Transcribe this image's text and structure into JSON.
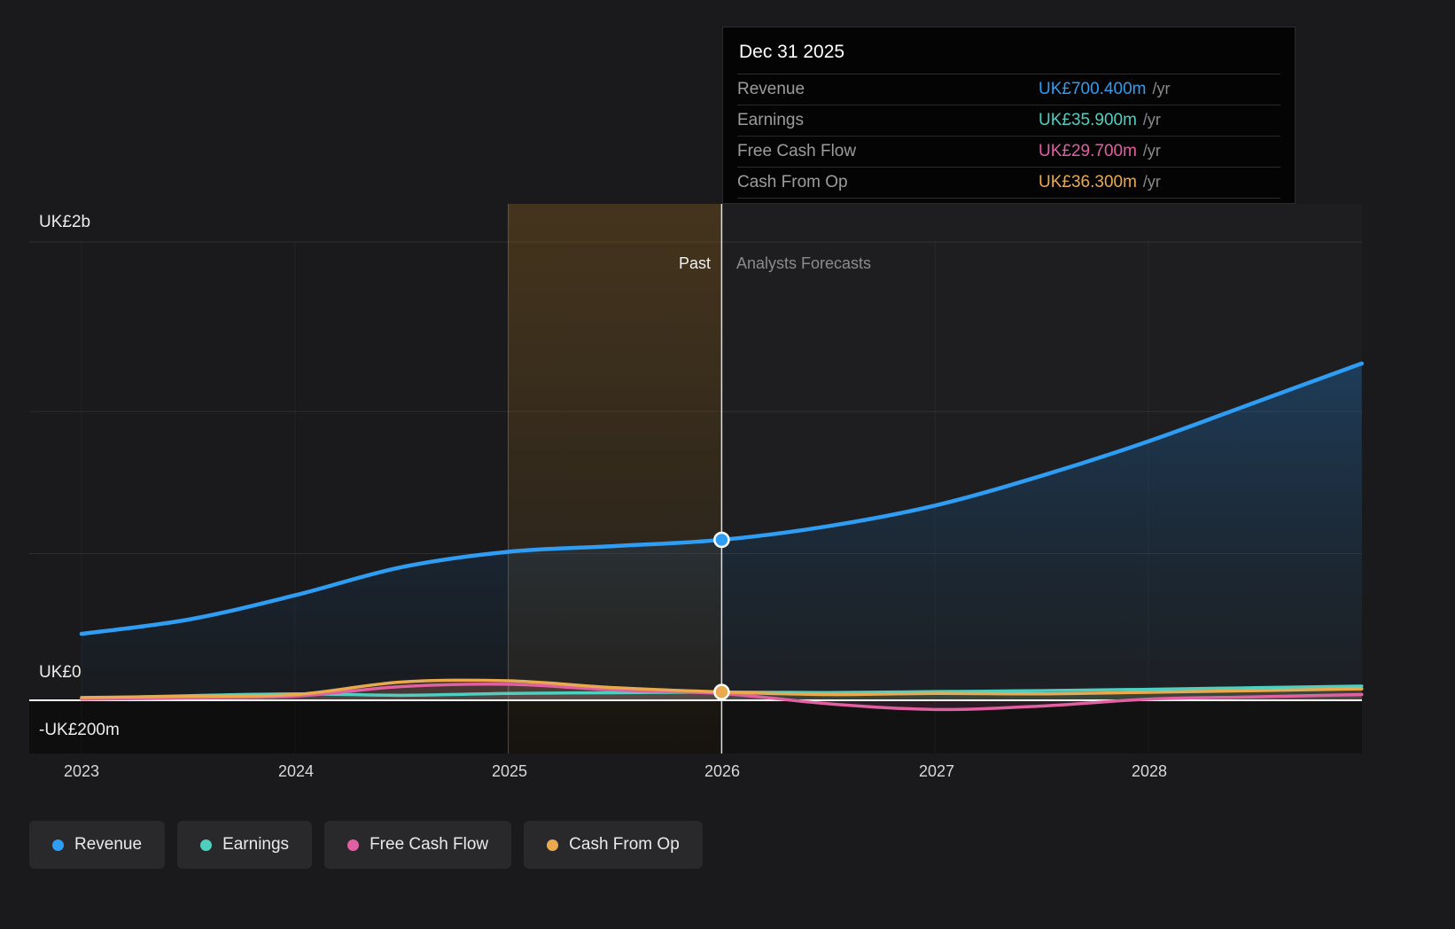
{
  "tooltip": {
    "date": "Dec 31 2025",
    "rows": [
      {
        "label": "Revenue",
        "value": "UK£700.400m",
        "suffix": "/yr",
        "color": "#2e9df3"
      },
      {
        "label": "Earnings",
        "value": "UK£35.900m",
        "suffix": "/yr",
        "color": "#4ed0c0"
      },
      {
        "label": "Free Cash Flow",
        "value": "UK£29.700m",
        "suffix": "/yr",
        "color": "#e060a2"
      },
      {
        "label": "Cash From Op",
        "value": "UK£36.300m",
        "suffix": "/yr",
        "color": "#e9a94f"
      }
    ]
  },
  "axis": {
    "y_labels": [
      {
        "text": "UK£2b"
      },
      {
        "text": "UK£0"
      },
      {
        "text": "-UK£200m"
      }
    ],
    "x_labels": [
      "2023",
      "2024",
      "2025",
      "2026",
      "2027",
      "2028"
    ]
  },
  "annotations": {
    "past_label": "Past",
    "forecast_label": "Analysts Forecasts"
  },
  "legend": [
    {
      "label": "Revenue",
      "color": "#2e9df3"
    },
    {
      "label": "Earnings",
      "color": "#4ed0c0"
    },
    {
      "label": "Free Cash Flow",
      "color": "#e060a2"
    },
    {
      "label": "Cash From Op",
      "color": "#e9a94f"
    }
  ],
  "chart_data": {
    "type": "line",
    "unit": "UK£ millions",
    "x": [
      2023,
      2023.5,
      2024,
      2024.5,
      2025,
      2025.5,
      2026,
      2026.5,
      2027,
      2027.5,
      2028,
      2028.5,
      2029
    ],
    "series": [
      {
        "name": "Revenue",
        "color": "#2e9df3",
        "line_width": 4.5,
        "area": "revenue-gradient",
        "marker_year": 2026,
        "values": [
          290,
          352,
          458,
          581,
          648,
          673,
          700.4,
          760,
          850,
          980,
          1130,
          1300,
          1470
        ]
      },
      {
        "name": "Earnings",
        "color": "#4ed0c0",
        "line_width": 3.5,
        "area": "tint",
        "values": [
          8,
          20,
          28,
          22,
          30,
          33,
          35.9,
          34,
          38,
          42,
          48,
          55,
          62
        ]
      },
      {
        "name": "Free Cash Flow",
        "color": "#e060a2",
        "line_width": 3.5,
        "area": "tint",
        "values": [
          5,
          10,
          18,
          60,
          70,
          45,
          29.7,
          -15,
          -40,
          -25,
          5,
          15,
          25
        ]
      },
      {
        "name": "Cash From Op",
        "color": "#e9a94f",
        "line_width": 3.5,
        "area": "tint",
        "marker_year": 2026,
        "values": [
          12,
          18,
          25,
          80,
          85,
          55,
          36.3,
          25,
          30,
          28,
          35,
          42,
          50
        ]
      }
    ],
    "ylim_m": [
      -230,
      2090
    ],
    "y_gridlines_m": [
      2000,
      1260,
      640,
      0
    ],
    "x_ticks": [
      2023,
      2024,
      2025,
      2026,
      2027,
      2028
    ],
    "divider_year": 2026,
    "highlight_range_years": [
      2025,
      2026
    ],
    "past_region_years": [
      2023,
      2026
    ],
    "forecast_region_years": [
      2026,
      2029
    ]
  }
}
